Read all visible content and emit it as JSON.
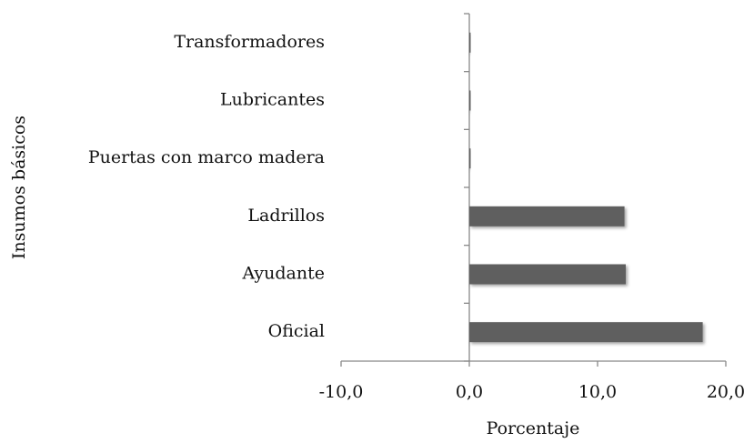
{
  "chart_data": {
    "type": "barh",
    "xlabel": "Porcentaje",
    "ylabel": "Insumos básicos",
    "categories": [
      "Transformadores",
      "Lubricantes",
      "Puertas con marco madera",
      "Ladrillos",
      "Ayudante",
      "Oficial"
    ],
    "values": [
      0.1,
      0.1,
      0.1,
      12.1,
      12.2,
      18.2
    ],
    "color": "#5f5f5f",
    "xlim": [
      -10,
      20
    ],
    "xticks": [
      {
        "value": -10,
        "label": "-10,0"
      },
      {
        "value": 0,
        "label": "0,0"
      },
      {
        "value": 10,
        "label": "10,0"
      },
      {
        "value": 20,
        "label": "20,0"
      }
    ],
    "grid": false
  }
}
